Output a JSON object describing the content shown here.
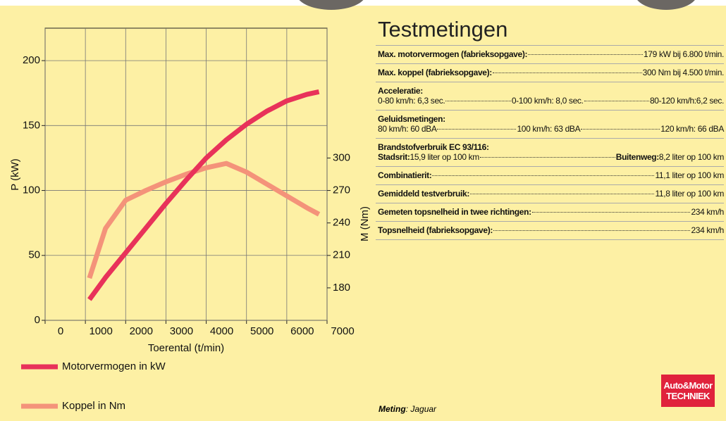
{
  "chart_data": {
    "type": "line",
    "x_label": "Toerental (t/min)",
    "y_label": "P (kW)",
    "y2_label": "M (Nm)",
    "x": [
      1100,
      1500,
      2000,
      2500,
      3000,
      3500,
      4000,
      4500,
      5000,
      5500,
      6000,
      6500,
      6800
    ],
    "xlim": [
      0,
      7000
    ],
    "xticks": [
      0,
      1000,
      2000,
      3000,
      4000,
      5000,
      6000,
      7000
    ],
    "ylim": [
      0,
      225
    ],
    "yticks": [
      0,
      50,
      100,
      150,
      200
    ],
    "y2lim": [
      150,
      420
    ],
    "y2ticks": [
      180,
      210,
      240,
      270,
      300
    ],
    "grid": true,
    "series": [
      {
        "name": "Motorvermogen in kW",
        "color": "#e8325a",
        "values": [
          16,
          33,
          52,
          71,
          90,
          108,
          125,
          139,
          151,
          161,
          169,
          174,
          176
        ]
      },
      {
        "name": "Koppel in Nm",
        "color": "#f4937a",
        "axis": "y2",
        "values": [
          189,
          235,
          261,
          270,
          278,
          285,
          291,
          295,
          287,
          276,
          265,
          254,
          248
        ]
      }
    ]
  },
  "panel": {
    "title": "Testmetingen",
    "rows": [
      {
        "label": "Max. motorvermogen (fabrieksopgave):",
        "value": "179 kW bij 6.800 t/min."
      },
      {
        "label": "Max. koppel (fabrieksopgave):",
        "value": "300 Nm bij 4.500 t/min."
      },
      {
        "heading": "Acceleratie:",
        "items": [
          "0-80 km/h: 6,3 sec.",
          "0-100 km/h: 8,0 sec.",
          "80-120 km/h:6,2 sec."
        ]
      },
      {
        "heading": "Geluidsmetingen:",
        "items": [
          "80 km/h: 60 dBA",
          "100 km/h: 63 dBA",
          "120 km/h: 66 dBA"
        ]
      },
      {
        "heading": "Brandstofverbruik EC 93/116:",
        "pairs": [
          {
            "label": "Stadsrit:",
            "value": "15,9 liter op 100 km"
          },
          {
            "label": "Buitenweg:",
            "value": "8,2 liter op 100 km"
          }
        ]
      },
      {
        "label": "Combinatierit:",
        "value": "11,1 liter op 100 km"
      },
      {
        "label": "Gemiddeld testverbruik:",
        "value": "11,8 liter op 100 km"
      },
      {
        "label": "Gemeten topsnelheid in twee richtingen:",
        "value": "234 km/h"
      },
      {
        "label": "Topsnelheid (fabrieksopgave):",
        "value": "234 km/h"
      }
    ],
    "footer": {
      "label": "Meting",
      "value": ": Jaguar"
    },
    "logo": [
      "Auto&Motor",
      "TECHNIEK"
    ]
  }
}
